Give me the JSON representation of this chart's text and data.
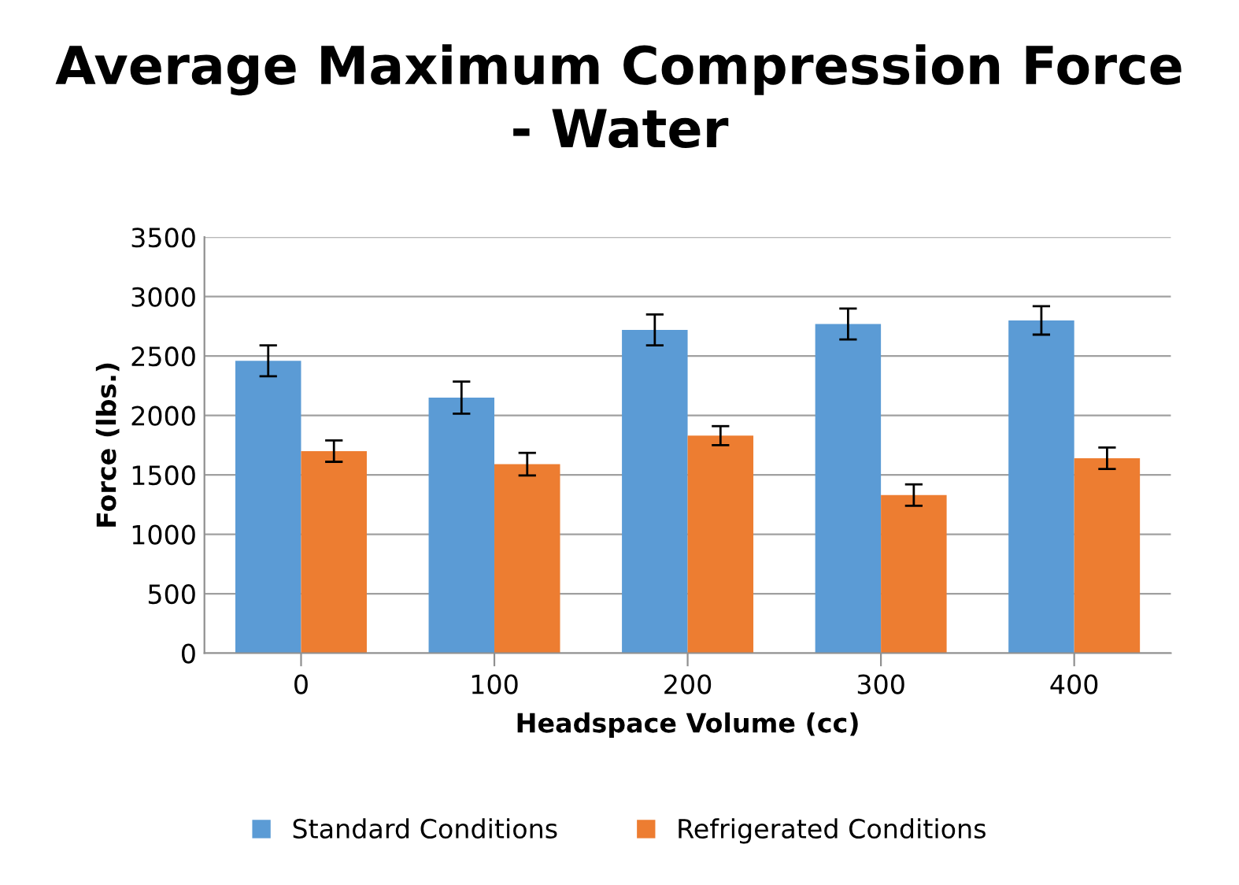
{
  "chart_data": {
    "type": "bar",
    "title": "Average Maximum Compression Force\n- Water",
    "xlabel": "Headspace Volume (cc)",
    "ylabel": "Force (lbs.)",
    "categories": [
      "0",
      "100",
      "200",
      "300",
      "400"
    ],
    "series": [
      {
        "name": "Standard Conditions",
        "color": "#5b9bd5",
        "values": [
          2460,
          2150,
          2720,
          2770,
          2800
        ],
        "errors": [
          130,
          135,
          130,
          130,
          120
        ]
      },
      {
        "name": "Refrigerated Conditions",
        "color": "#ed7d31",
        "values": [
          1700,
          1590,
          1830,
          1330,
          1640
        ],
        "errors": [
          90,
          95,
          80,
          90,
          90
        ]
      }
    ],
    "ylim": [
      0,
      3500
    ],
    "yticks": [
      0,
      500,
      1000,
      1500,
      2000,
      2500,
      3000,
      3500
    ],
    "grid": "y",
    "legend": "bottom"
  }
}
